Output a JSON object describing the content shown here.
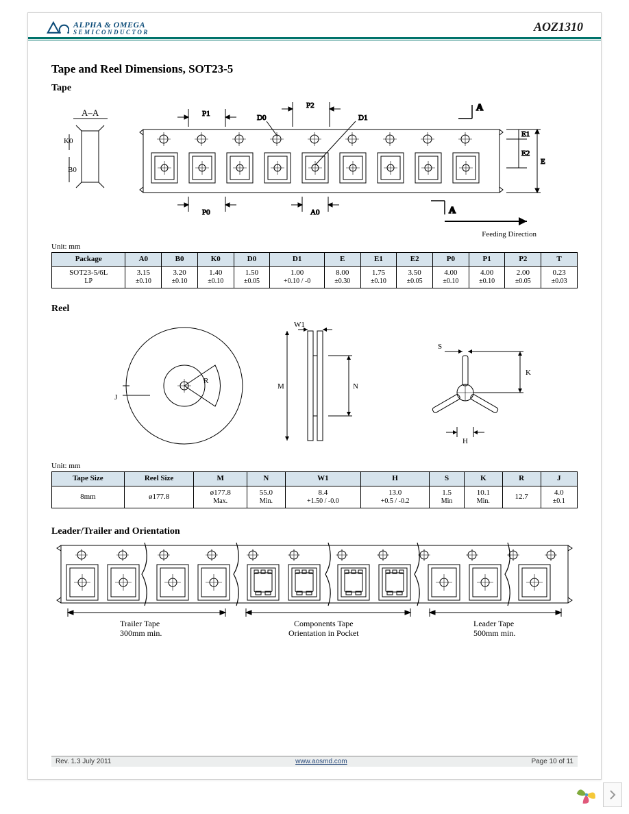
{
  "header": {
    "company_top": "ALPHA & OMEGA",
    "company_bot": "SEMICONDUCTOR",
    "part_number": "AOZ1310",
    "logo_color": "#0b4b78",
    "rule_color": "#00736b"
  },
  "title": "Tape and Reel Dimensions, SOT23-5",
  "tape": {
    "heading": "Tape",
    "labels": {
      "section_aa": "A–A",
      "k0": "K0",
      "b0": "B0",
      "p0": "P0",
      "p1": "P1",
      "p2": "P2",
      "d0": "D0",
      "d1": "D1",
      "a0": "A0",
      "e": "E",
      "e1": "E1",
      "e2": "E2",
      "a": "A",
      "feeding": "Feeding Direction"
    },
    "table": {
      "unit": "Unit: mm",
      "headers": [
        "Package",
        "A0",
        "B0",
        "K0",
        "D0",
        "D1",
        "E",
        "E1",
        "E2",
        "P0",
        "P1",
        "P2",
        "T"
      ],
      "rows": [
        {
          "package": "SOT23-5/6L LP",
          "values": [
            {
              "v": "3.15",
              "t": "±0.10"
            },
            {
              "v": "3.20",
              "t": "±0.10"
            },
            {
              "v": "1.40",
              "t": "±0.10"
            },
            {
              "v": "1.50",
              "t": "±0.05"
            },
            {
              "v": "1.00",
              "t": "+0.10 / -0"
            },
            {
              "v": "8.00",
              "t": "±0.30"
            },
            {
              "v": "1.75",
              "t": "±0.10"
            },
            {
              "v": "3.50",
              "t": "±0.05"
            },
            {
              "v": "4.00",
              "t": "±0.10"
            },
            {
              "v": "4.00",
              "t": "±0.10"
            },
            {
              "v": "2.00",
              "t": "±0.05"
            },
            {
              "v": "0.23",
              "t": "±0.03"
            }
          ]
        }
      ]
    }
  },
  "reel": {
    "heading": "Reel",
    "labels": {
      "w1": "W1",
      "m": "M",
      "n": "N",
      "j": "J",
      "r": "R",
      "s": "S",
      "k": "K",
      "h": "H"
    },
    "table": {
      "unit": "Unit: mm",
      "headers": [
        "Tape Size",
        "Reel Size",
        "M",
        "N",
        "W1",
        "H",
        "S",
        "K",
        "R",
        "J"
      ],
      "rows": [
        {
          "tape_size": "8mm",
          "reel_size": "ø177.8",
          "values": [
            {
              "v": "ø177.8",
              "t": "Max."
            },
            {
              "v": "55.0",
              "t": "Min."
            },
            {
              "v": "8.4",
              "t": "+1.50 / -0.0"
            },
            {
              "v": "13.0",
              "t": "+0.5 / -0.2"
            },
            {
              "v": "1.5",
              "t": "Min"
            },
            {
              "v": "10.1",
              "t": "Min."
            },
            {
              "v": "12.7",
              "t": ""
            },
            {
              "v": "4.0",
              "t": "±0.1"
            }
          ]
        }
      ]
    }
  },
  "orientation": {
    "heading": "Leader/Trailer and Orientation",
    "trailer_label": "Trailer Tape",
    "trailer_value": "300mm min.",
    "components_label": "Components Tape",
    "components_value": "Orientation in Pocket",
    "leader_label": "Leader Tape",
    "leader_value": "500mm min."
  },
  "footer": {
    "rev": "Rev. 1.3 July 2011",
    "url": "www.aosmd.com",
    "page": "Page 10 of 11"
  },
  "colors": {
    "table_header_bg": "#d6e3ec",
    "line": "#000000"
  }
}
